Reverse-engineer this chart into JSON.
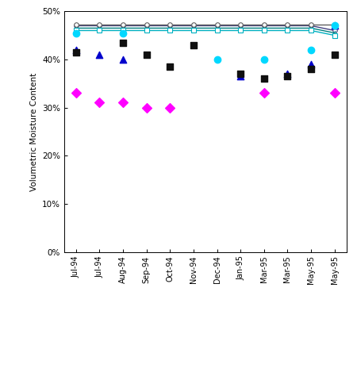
{
  "x_labels": [
    "Jul-94",
    "Jul-94",
    "Aug-94",
    "Sep-94",
    "Oct-94",
    "Nov-94",
    "Dec-94",
    "Jan-95",
    "Mar-95",
    "Mar-95",
    "May-95",
    "May-95"
  ],
  "x_positions": [
    0,
    1,
    2,
    3,
    4,
    5,
    6,
    7,
    8,
    9,
    10,
    11
  ],
  "predicted_1118": [
    47.0,
    47.0,
    47.0,
    47.0,
    47.0,
    47.0,
    47.0,
    47.0,
    47.0,
    47.0,
    47.0,
    46.0
  ],
  "predicted_127": [
    46.5,
    46.5,
    46.5,
    46.5,
    46.5,
    46.5,
    46.5,
    46.5,
    46.5,
    46.5,
    46.5,
    45.5
  ],
  "predicted_1435": [
    46.0,
    46.0,
    46.0,
    46.0,
    46.0,
    46.0,
    46.0,
    46.0,
    46.0,
    46.0,
    46.0,
    45.0
  ],
  "predicted_1756": [
    47.2,
    47.2,
    47.2,
    47.2,
    47.2,
    47.2,
    47.2,
    47.2,
    47.2,
    47.2,
    47.2,
    47.2
  ],
  "monitored_1118": [
    33.0,
    31.0,
    31.0,
    30.0,
    30.0,
    null,
    null,
    null,
    33.0,
    null,
    null,
    33.0
  ],
  "monitored_127": [
    42.0,
    41.0,
    40.0,
    null,
    null,
    null,
    null,
    36.5,
    null,
    37.0,
    39.0,
    47.0
  ],
  "monitored_1435": [
    41.5,
    null,
    43.5,
    41.0,
    38.5,
    43.0,
    null,
    37.0,
    36.0,
    36.5,
    38.0,
    41.0
  ],
  "monitored_1756": [
    45.5,
    null,
    45.5,
    null,
    null,
    null,
    40.0,
    null,
    40.0,
    null,
    42.0,
    47.0
  ],
  "ylabel": "Volumetric Moisture Content",
  "ylim": [
    0,
    50
  ],
  "yticks": [
    0,
    10,
    20,
    30,
    40,
    50
  ],
  "ytick_labels": [
    "0%",
    "10%",
    "20%",
    "30%",
    "40%",
    "50%"
  ],
  "color_pred_1118": "#404080",
  "color_pred_127": "#008080",
  "color_pred_1435": "#00b0c0",
  "color_pred_1756": "#606060",
  "color_mon_1118": "#ff00ff",
  "color_mon_127": "#0000cc",
  "color_mon_1435": "#101010",
  "color_mon_1756": "#00d8ff"
}
